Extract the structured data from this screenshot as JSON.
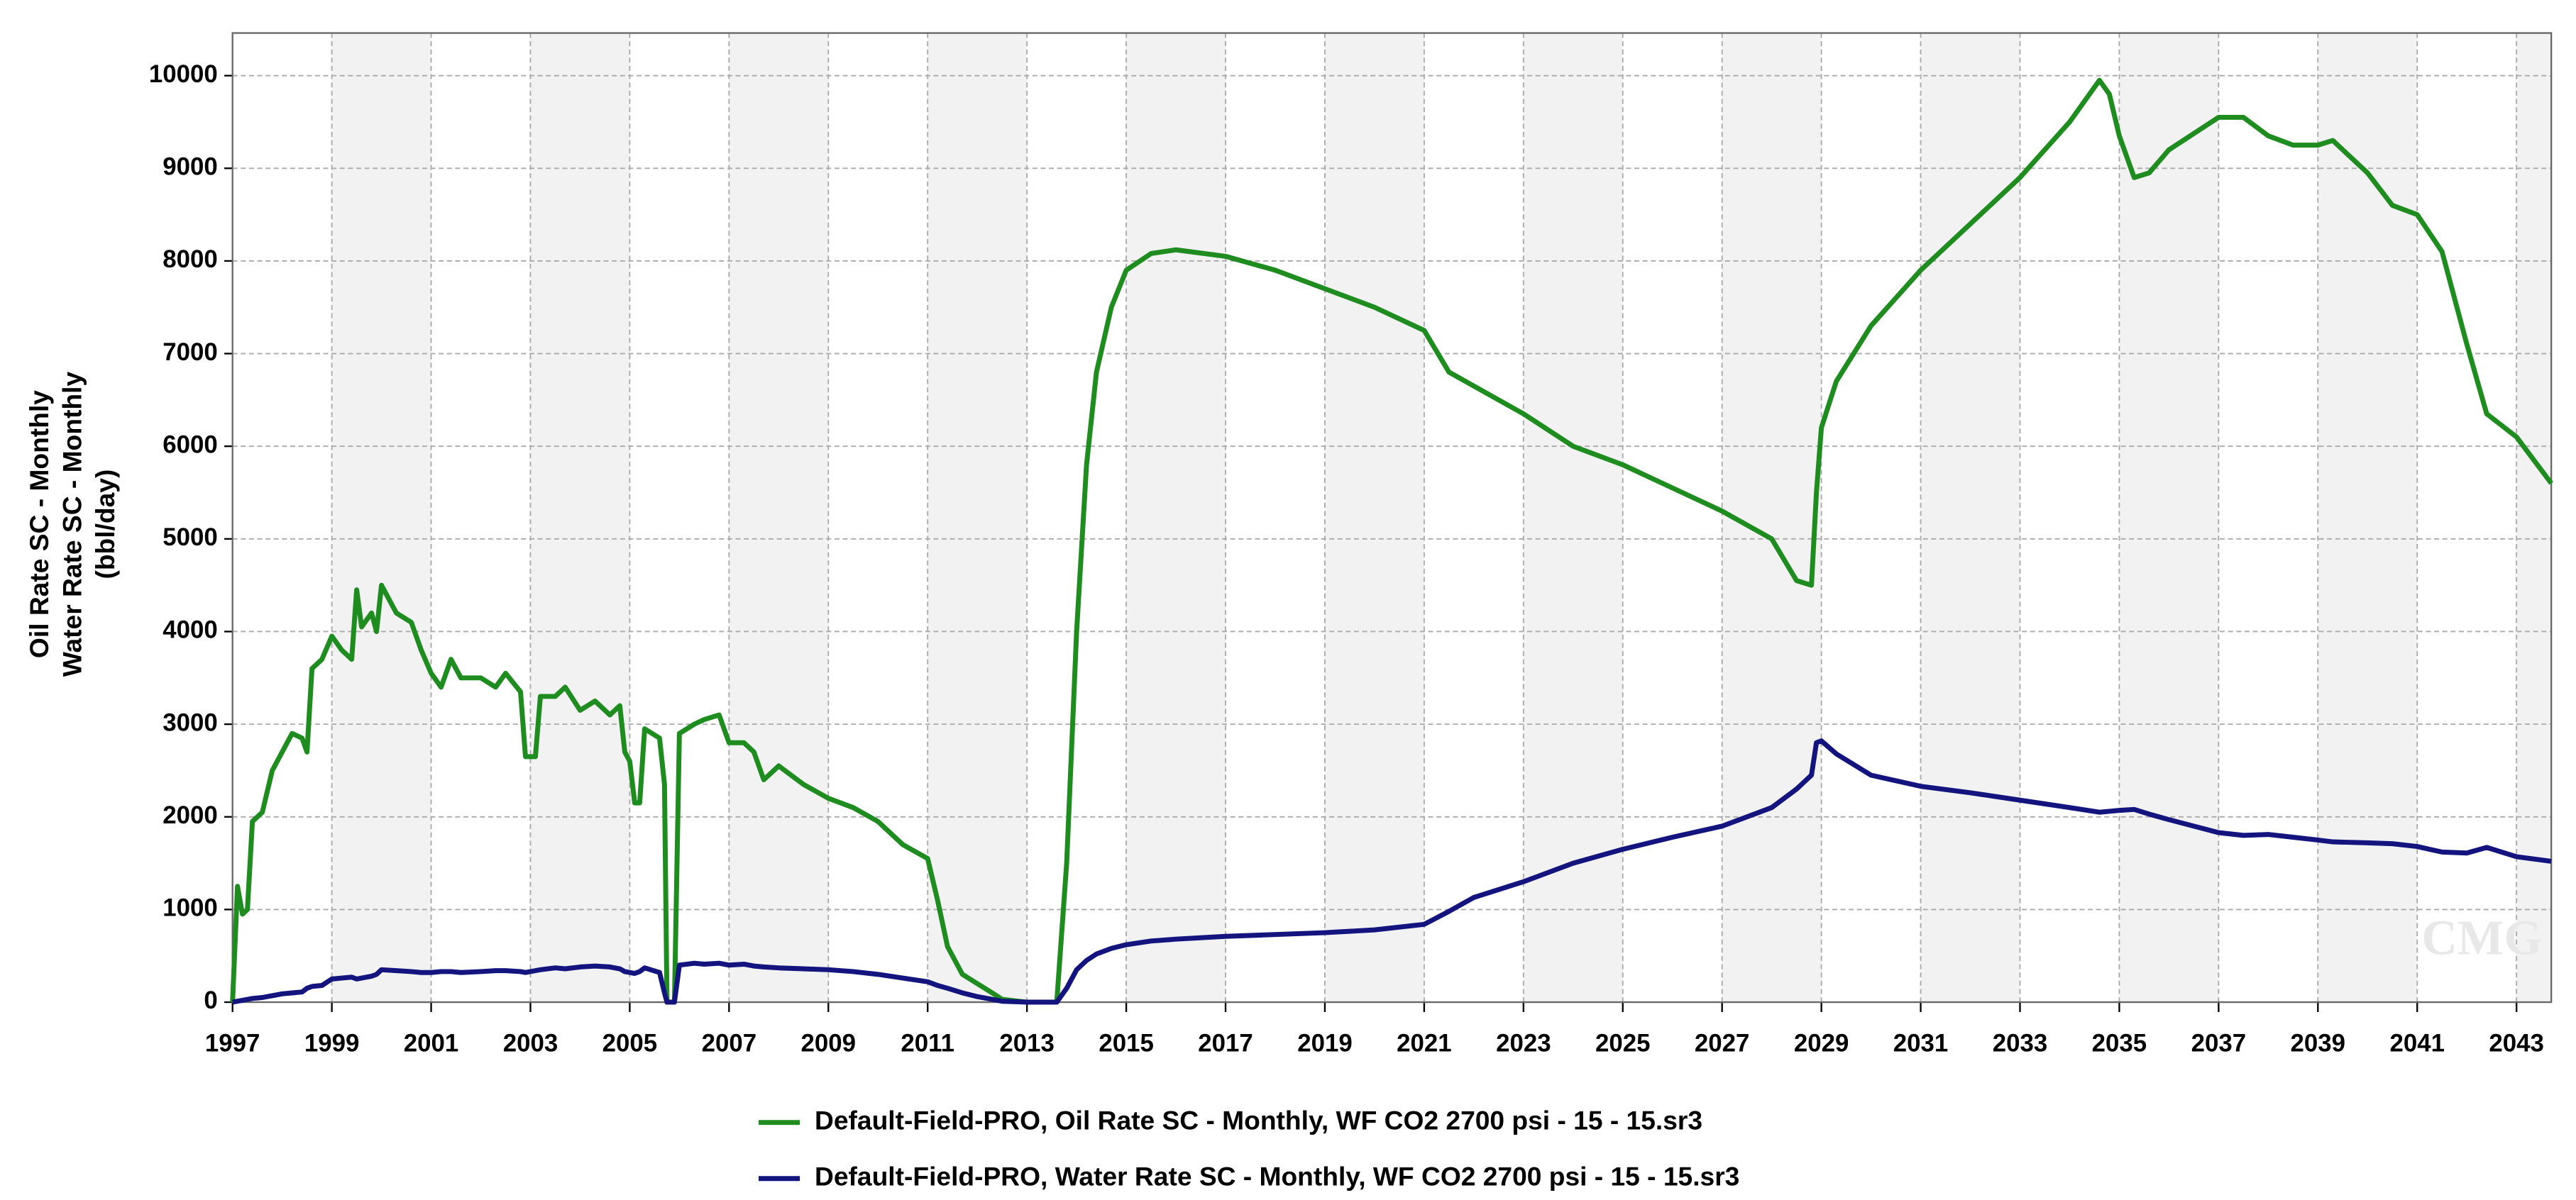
{
  "chart_data": {
    "type": "line",
    "ylabel": [
      "Oil Rate SC - Monthly",
      "Water Rate SC - Monthly",
      "(bbl/day)"
    ],
    "watermark": "CMG",
    "grid": true,
    "legend": "bottom",
    "xlim": [
      1997,
      2043.7
    ],
    "ylim": [
      0,
      10460
    ],
    "xticks": [
      1997,
      1999,
      2001,
      2003,
      2005,
      2007,
      2009,
      2011,
      2013,
      2015,
      2017,
      2019,
      2021,
      2023,
      2025,
      2027,
      2029,
      2031,
      2033,
      2035,
      2037,
      2039,
      2041,
      2043
    ],
    "yticks": [
      0,
      1000,
      2000,
      3000,
      4000,
      5000,
      6000,
      7000,
      8000,
      9000,
      10000
    ],
    "x": [
      1997.0,
      1997.1,
      1997.2,
      1997.3,
      1997.4,
      1997.6,
      1997.8,
      1998.0,
      1998.2,
      1998.4,
      1998.5,
      1998.6,
      1998.8,
      1999.0,
      1999.2,
      1999.4,
      1999.5,
      1999.6,
      1999.8,
      1999.9,
      2000.0,
      2000.3,
      2000.6,
      2000.8,
      2001.0,
      2001.2,
      2001.4,
      2001.6,
      2002.0,
      2002.3,
      2002.5,
      2002.8,
      2002.9,
      2003.1,
      2003.2,
      2003.5,
      2003.7,
      2004.0,
      2004.3,
      2004.6,
      2004.8,
      2004.9,
      2005.0,
      2005.1,
      2005.2,
      2005.3,
      2005.6,
      2005.7,
      2005.75,
      2005.9,
      2006.0,
      2006.3,
      2006.5,
      2006.8,
      2007.0,
      2007.3,
      2007.5,
      2007.7,
      2008.0,
      2008.5,
      2009.0,
      2009.5,
      2010.0,
      2010.5,
      2011.0,
      2011.2,
      2011.4,
      2011.7,
      2012.0,
      2012.3,
      2012.5,
      2013.0,
      2013.6,
      2013.8,
      2014.0,
      2014.2,
      2014.4,
      2014.7,
      2015.0,
      2015.5,
      2016.0,
      2017.0,
      2018.0,
      2019.0,
      2020.0,
      2021.0,
      2021.5,
      2022.0,
      2023.0,
      2024.0,
      2025.0,
      2026.0,
      2027.0,
      2028.0,
      2028.5,
      2028.8,
      2028.9,
      2029.0,
      2029.3,
      2030.0,
      2031.0,
      2032.0,
      2033.0,
      2034.0,
      2034.6,
      2034.8,
      2035.0,
      2035.3,
      2035.6,
      2036.0,
      2037.0,
      2037.5,
      2038.0,
      2038.5,
      2039.0,
      2039.3,
      2040.0,
      2040.5,
      2041.0,
      2041.5,
      2042.0,
      2042.4,
      2043.0,
      2043.7
    ],
    "series": [
      {
        "name": "Default-Field-PRO, Oil Rate SC - Monthly, WF CO2 2700 psi - 15 - 15.sr3",
        "color": "#1e8c1e",
        "values": [
          0,
          1250,
          950,
          1000,
          1950,
          2050,
          2500,
          2700,
          2900,
          2850,
          2700,
          3600,
          3700,
          3950,
          3800,
          3700,
          4450,
          4050,
          4200,
          4000,
          4500,
          4200,
          4100,
          3800,
          3550,
          3400,
          3700,
          3500,
          3500,
          3400,
          3550,
          3350,
          2650,
          2650,
          3300,
          3300,
          3400,
          3150,
          3250,
          3100,
          3200,
          2700,
          2600,
          2150,
          2150,
          2950,
          2850,
          2350,
          0,
          0,
          2900,
          3000,
          3050,
          3100,
          2800,
          2800,
          2700,
          2400,
          2550,
          2350,
          2200,
          2100,
          1950,
          1700,
          1550,
          1100,
          600,
          300,
          200,
          100,
          30,
          0,
          0,
          1500,
          4000,
          5800,
          6800,
          7500,
          7900,
          8080,
          8120,
          8050,
          7900,
          7700,
          7500,
          7250,
          6800,
          6650,
          6350,
          6000,
          5800,
          5550,
          5300,
          5000,
          4550,
          4500,
          5500,
          6200,
          6700,
          7300,
          7900,
          8400,
          8900,
          9500,
          9950,
          9800,
          9350,
          8900,
          8950,
          9200,
          9550,
          9550,
          9350,
          9250,
          9250,
          9300,
          8950,
          8600,
          8500,
          8100,
          7100,
          6350,
          6100,
          5600
        ]
      },
      {
        "name": "Default-Field-PRO, Water Rate SC - Monthly, WF CO2 2700 psi - 15 - 15.sr3",
        "color": "#14147f",
        "values": [
          0,
          10,
          20,
          30,
          40,
          50,
          70,
          90,
          100,
          110,
          150,
          170,
          180,
          250,
          260,
          270,
          250,
          260,
          280,
          300,
          350,
          340,
          330,
          320,
          320,
          330,
          330,
          320,
          330,
          340,
          340,
          330,
          320,
          340,
          350,
          370,
          360,
          380,
          390,
          380,
          360,
          330,
          320,
          310,
          330,
          370,
          320,
          100,
          0,
          0,
          400,
          420,
          410,
          420,
          400,
          410,
          390,
          380,
          370,
          360,
          350,
          330,
          300,
          260,
          220,
          180,
          150,
          100,
          60,
          30,
          10,
          0,
          0,
          150,
          350,
          450,
          520,
          580,
          620,
          660,
          680,
          710,
          730,
          750,
          780,
          840,
          980,
          1130,
          1300,
          1500,
          1650,
          1780,
          1900,
          2100,
          2300,
          2450,
          2800,
          2820,
          2680,
          2450,
          2330,
          2260,
          2180,
          2100,
          2050,
          2060,
          2070,
          2080,
          2030,
          1970,
          1830,
          1800,
          1810,
          1780,
          1750,
          1730,
          1720,
          1710,
          1680,
          1620,
          1610,
          1670,
          1570,
          1520
        ]
      }
    ]
  }
}
